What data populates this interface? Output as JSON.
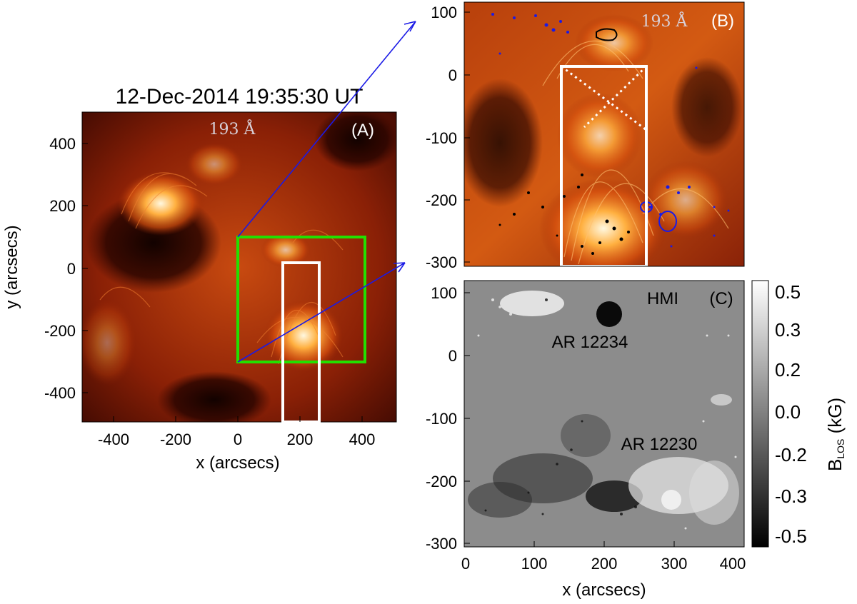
{
  "panel_a": {
    "title": "12-Dec-2014 19:35:30 UT",
    "wavelength": "193 Å",
    "tag": "(A)",
    "xlabel": "x (arcsecs)",
    "ylabel": "y (arcsecs)",
    "xticks": [
      "-400",
      "-200",
      "0",
      "200",
      "400"
    ],
    "yticks": [
      "400",
      "200",
      "0",
      "-200",
      "-400"
    ]
  },
  "panel_b": {
    "wavelength": "193 Å",
    "tag": "(B)",
    "yticks": [
      "100",
      "0",
      "-100",
      "-200",
      "-300"
    ]
  },
  "panel_c": {
    "instrument": "HMI",
    "tag": "(C)",
    "region_north": "AR 12234",
    "region_south": "AR 12230",
    "xlabel": "x (arcsecs)",
    "xticks": [
      "0",
      "100",
      "200",
      "300",
      "400"
    ],
    "yticks": [
      "100",
      "0",
      "-100",
      "-200",
      "-300"
    ],
    "colorbar_label_main": "B",
    "colorbar_label_sub": "LOS",
    "colorbar_label_unit": " (kG)",
    "colorbar_ticks": [
      "0.5",
      "0.3",
      "0.2",
      "0.0",
      "-0.2",
      "-0.3",
      "-0.5"
    ]
  },
  "colors": {
    "context_box": "#22e000",
    "zoom_lines": "#1a1ae6",
    "slit_box": "#ffffff",
    "positive_contour": "#1a1ae6",
    "negative_contour": "#000000"
  }
}
